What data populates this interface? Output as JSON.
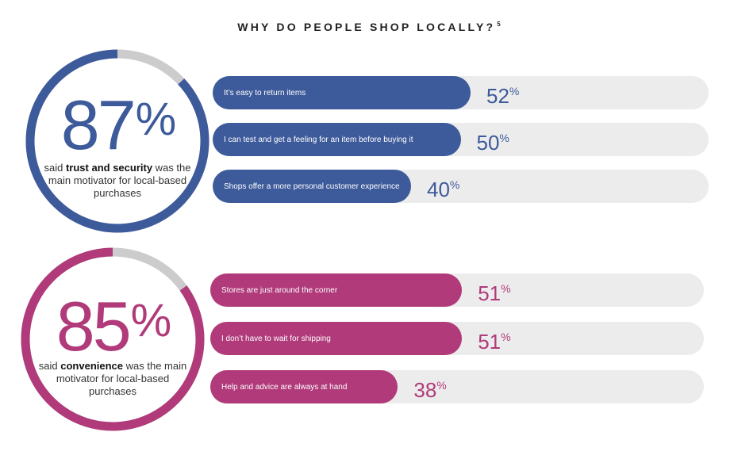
{
  "title": {
    "text": "WHY DO PEOPLE SHOP LOCALLY?",
    "footnote": "5"
  },
  "colors": {
    "blue": "#3d5a9a",
    "magenta": "#b03a7a",
    "ring_gray": "#cccccc",
    "track": "#ececec"
  },
  "chart_data": [
    {
      "type": "donut",
      "value": 87,
      "value_label": "87",
      "unit": "%",
      "caption_pre": "said ",
      "caption_bold": "trust and security",
      "caption_post": " was the main motivator for local-based purchases",
      "color": "#3d5a9a"
    },
    {
      "type": "bar",
      "orientation": "horizontal",
      "xlim": [
        0,
        100
      ],
      "color": "#3d5a9a",
      "categories": [
        "It’s easy to return items",
        "I can test and get a feeling for an item before buying it",
        "Shops offer a more personal customer experience"
      ],
      "values": [
        52,
        50,
        40
      ],
      "value_labels": [
        "52",
        "50",
        "40"
      ],
      "unit": "%"
    },
    {
      "type": "donut",
      "value": 85,
      "value_label": "85",
      "unit": "%",
      "caption_pre": "said ",
      "caption_bold": "convenience",
      "caption_post": " was the main motivator for local-based purchases",
      "color": "#b03a7a"
    },
    {
      "type": "bar",
      "orientation": "horizontal",
      "xlim": [
        0,
        100
      ],
      "color": "#b03a7a",
      "categories": [
        "Stores are just around the corner",
        "I don’t have to wait for shipping",
        "Help and advice are always at hand"
      ],
      "values": [
        51,
        51,
        38
      ],
      "value_labels": [
        "51",
        "51",
        "38"
      ],
      "unit": "%"
    }
  ]
}
